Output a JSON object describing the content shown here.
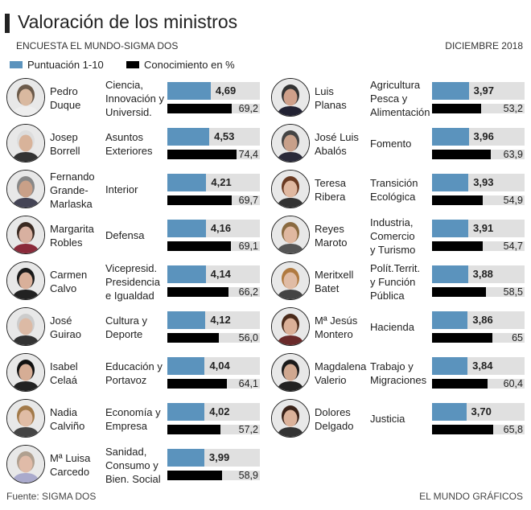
{
  "header": {
    "title": "Valoración de los ministros",
    "subtitle": "ENCUESTA EL MUNDO-SIGMA DOS",
    "date": "DICIEMBRE 2018"
  },
  "footer": {
    "source": "Fuente: SIGMA DOS",
    "credit": "EL MUNDO GRÁFICOS"
  },
  "chart_data": {
    "type": "bar",
    "xlim_score": [
      0,
      10
    ],
    "xlim_pct": [
      0,
      100
    ],
    "colors": {
      "score": "#5b93bd",
      "knowledge": "#000000",
      "track": "#e0e0e0"
    },
    "legend": [
      {
        "name": "Puntuación 1-10",
        "color": "#5b93bd"
      },
      {
        "name": "Conocimiento en %",
        "color": "#000000"
      }
    ],
    "ministers": [
      {
        "name": [
          "Pedro",
          "Duque"
        ],
        "dept": [
          "Ciencia,",
          "Innovación y",
          "Universid."
        ],
        "score": 4.69,
        "score_label": "4,69",
        "pct": 69.2,
        "pct_label": "69,2",
        "skin": "#d9b9a0",
        "hair": "#6b5a4a",
        "clothes": "#eee"
      },
      {
        "name": [
          "Josep",
          "Borrell"
        ],
        "dept": [
          "Asuntos",
          "Exteriores"
        ],
        "score": 4.53,
        "score_label": "4,53",
        "pct": 74.4,
        "pct_label": "74,4",
        "skin": "#d8b39a",
        "hair": "#ddd",
        "clothes": "#333"
      },
      {
        "name": [
          "Fernando",
          "Grande-",
          "Marlaska"
        ],
        "dept": [
          "Interior"
        ],
        "score": 4.21,
        "score_label": "4,21",
        "pct": 69.7,
        "pct_label": "69,7",
        "skin": "#c9a088",
        "hair": "#888",
        "clothes": "#445"
      },
      {
        "name": [
          "Margarita",
          "Robles"
        ],
        "dept": [
          "Defensa"
        ],
        "score": 4.16,
        "score_label": "4,16",
        "pct": 69.1,
        "pct_label": "69,1",
        "skin": "#d8b0a0",
        "hair": "#3a2a22",
        "clothes": "#8a2a3a"
      },
      {
        "name": [
          "Carmen",
          "Calvo"
        ],
        "dept": [
          "Vicepresid.",
          "Presidencia",
          "e Igualdad"
        ],
        "score": 4.14,
        "score_label": "4,14",
        "pct": 66.2,
        "pct_label": "66,2",
        "skin": "#d9b09a",
        "hair": "#1a1a1a",
        "clothes": "#222"
      },
      {
        "name": [
          "José",
          "Guirao"
        ],
        "dept": [
          "Cultura y",
          "Deporte"
        ],
        "score": 4.12,
        "score_label": "4,12",
        "pct": 56.0,
        "pct_label": "56,0",
        "skin": "#dcbaa5",
        "hair": "#ccc",
        "clothes": "#333"
      },
      {
        "name": [
          "Isabel",
          "Celaá"
        ],
        "dept": [
          "Educación y",
          "Portavoz"
        ],
        "score": 4.04,
        "score_label": "4,04",
        "pct": 64.1,
        "pct_label": "64,1",
        "skin": "#d6ad95",
        "hair": "#111",
        "clothes": "#222"
      },
      {
        "name": [
          "Nadia",
          "Calviño"
        ],
        "dept": [
          "Economía y",
          "Empresa"
        ],
        "score": 4.02,
        "score_label": "4,02",
        "pct": 57.2,
        "pct_label": "57,2",
        "skin": "#e0bca5",
        "hair": "#a27a4a",
        "clothes": "#444"
      },
      {
        "name": [
          "Mª Luisa",
          "Carcedo"
        ],
        "dept": [
          "Sanidad,",
          "Consumo y",
          "Bien. Social"
        ],
        "score": 3.99,
        "score_label": "3,99",
        "pct": 58.9,
        "pct_label": "58,9",
        "skin": "#e0bba8",
        "hair": "#b0a090",
        "clothes": "#aac"
      },
      {
        "name": [
          "Luis",
          "Planas"
        ],
        "dept": [
          "Agricultura",
          "Pesca y",
          "Alimentación"
        ],
        "score": 3.97,
        "score_label": "3,97",
        "pct": 53.2,
        "pct_label": "53,2",
        "skin": "#cfa08a",
        "hair": "#333",
        "clothes": "#223"
      },
      {
        "name": [
          "José Luis",
          "Abalós"
        ],
        "dept": [
          "Fomento"
        ],
        "score": 3.96,
        "score_label": "3,96",
        "pct": 63.9,
        "pct_label": "63,9",
        "skin": "#c8a08a",
        "hair": "#444",
        "clothes": "#2a2a3a"
      },
      {
        "name": [
          "Teresa",
          "Ribera"
        ],
        "dept": [
          "Transición",
          "Ecológica"
        ],
        "score": 3.93,
        "score_label": "3,93",
        "pct": 54.9,
        "pct_label": "54,9",
        "skin": "#e0b8a0",
        "hair": "#6a3a22",
        "clothes": "#333"
      },
      {
        "name": [
          "Reyes",
          "Maroto"
        ],
        "dept": [
          "Industria,",
          "Comercio",
          "y Turismo"
        ],
        "score": 3.91,
        "score_label": "3,91",
        "pct": 54.7,
        "pct_label": "54,7",
        "skin": "#e0b8a0",
        "hair": "#8a6a40",
        "clothes": "#555"
      },
      {
        "name": [
          "Meritxell",
          "Batet"
        ],
        "dept": [
          "Polít.Territ.",
          "y Función",
          "Pública"
        ],
        "score": 3.88,
        "score_label": "3,88",
        "pct": 58.5,
        "pct_label": "58,5",
        "skin": "#e0bca5",
        "hair": "#b07a40",
        "clothes": "#444"
      },
      {
        "name": [
          "Mª Jesús",
          "Montero"
        ],
        "dept": [
          "Hacienda"
        ],
        "score": 3.86,
        "score_label": "3,86",
        "pct": 65,
        "pct_label": "65",
        "skin": "#dbb098",
        "hair": "#4a2a1a",
        "clothes": "#6a2a2a"
      },
      {
        "name": [
          "Magdalena",
          "Valerio"
        ],
        "dept": [
          "Trabajo y",
          "Migraciones"
        ],
        "score": 3.84,
        "score_label": "3,84",
        "pct": 60.4,
        "pct_label": "60,4",
        "skin": "#d0a890",
        "hair": "#1a1a1a",
        "clothes": "#222"
      },
      {
        "name": [
          "Dolores",
          "Delgado"
        ],
        "dept": [
          "Justicia"
        ],
        "score": 3.7,
        "score_label": "3,70",
        "pct": 65.8,
        "pct_label": "65,8",
        "skin": "#dcb29a",
        "hair": "#3a2218",
        "clothes": "#333"
      }
    ]
  }
}
